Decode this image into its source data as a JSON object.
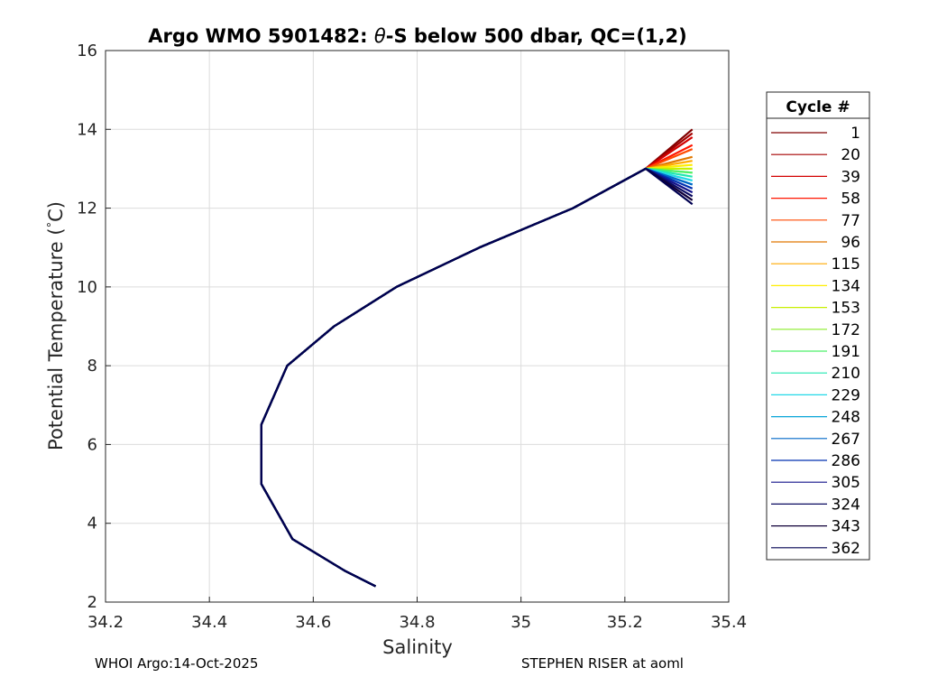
{
  "chart_data": {
    "type": "line",
    "title_prefix": "Argo WMO 5901482: ",
    "title_theta": "θ",
    "title_suffix": "-S below 500 dbar,  QC=(1,2)",
    "xlabel": "Salinity",
    "ylabel_main": "Potential Temperature (",
    "ylabel_deg": "°",
    "ylabel_end": "C)",
    "xlim": [
      34.2,
      35.4
    ],
    "ylim": [
      2,
      16
    ],
    "xticks": [
      "34.2",
      "34.4",
      "34.6",
      "34.8",
      "35",
      "35.2",
      "35.4"
    ],
    "yticks": [
      "2",
      "4",
      "6",
      "8",
      "10",
      "12",
      "14",
      "16"
    ],
    "grid": true,
    "legend": {
      "title": "Cycle #",
      "placement": "right-outside",
      "entries": [
        {
          "label": "1",
          "color": "#800000"
        },
        {
          "label": "20",
          "color": "#a50000"
        },
        {
          "label": "39",
          "color": "#d20000"
        },
        {
          "label": "58",
          "color": "#ff1500"
        },
        {
          "label": "77",
          "color": "#ff4a00"
        },
        {
          "label": "96",
          "color": "#e07800"
        },
        {
          "label": "115",
          "color": "#ffaa00"
        },
        {
          "label": "134",
          "color": "#ffee00"
        },
        {
          "label": "153",
          "color": "#c8f000"
        },
        {
          "label": "172",
          "color": "#8aee2a"
        },
        {
          "label": "191",
          "color": "#4ef06a"
        },
        {
          "label": "210",
          "color": "#20e8b0"
        },
        {
          "label": "229",
          "color": "#22d8e8"
        },
        {
          "label": "248",
          "color": "#0aa6d8"
        },
        {
          "label": "267",
          "color": "#0068c8"
        },
        {
          "label": "286",
          "color": "#0030b0"
        },
        {
          "label": "305",
          "color": "#12128a"
        },
        {
          "label": "324",
          "color": "#0a0a60"
        },
        {
          "label": "343",
          "color": "#100038"
        },
        {
          "label": "362",
          "color": "#000050"
        }
      ]
    },
    "series": [
      {
        "color": "#800000",
        "s": [
          35.33,
          35.24,
          35.1,
          34.92,
          34.76,
          34.64,
          34.55,
          34.5,
          34.5,
          34.56,
          34.66,
          34.72
        ],
        "t": [
          14.0,
          13.0,
          12.0,
          11.0,
          10.0,
          9.0,
          8.0,
          6.5,
          5.0,
          3.6,
          2.8,
          2.4
        ]
      },
      {
        "color": "#a50000",
        "s": [
          35.33,
          35.24,
          35.1,
          34.92,
          34.76,
          34.64,
          34.55,
          34.5,
          34.5,
          34.56,
          34.66,
          34.72
        ],
        "t": [
          13.9,
          13.0,
          12.0,
          11.0,
          10.0,
          9.0,
          8.0,
          6.5,
          5.0,
          3.6,
          2.8,
          2.4
        ]
      },
      {
        "color": "#d20000",
        "s": [
          35.33,
          35.24,
          35.1,
          34.92,
          34.76,
          34.64,
          34.55,
          34.5,
          34.5,
          34.56,
          34.66,
          34.72
        ],
        "t": [
          13.8,
          13.0,
          12.0,
          11.0,
          10.0,
          9.0,
          8.0,
          6.5,
          5.0,
          3.6,
          2.8,
          2.4
        ]
      },
      {
        "color": "#ff1500",
        "s": [
          35.33,
          35.24,
          35.1,
          34.92,
          34.76,
          34.64,
          34.55,
          34.5,
          34.5,
          34.56,
          34.66,
          34.72
        ],
        "t": [
          13.6,
          13.0,
          12.0,
          11.0,
          10.0,
          9.0,
          8.0,
          6.5,
          5.0,
          3.6,
          2.8,
          2.4
        ]
      },
      {
        "color": "#ff4a00",
        "s": [
          35.33,
          35.24,
          35.1,
          34.92,
          34.76,
          34.64,
          34.55,
          34.5,
          34.5,
          34.56,
          34.66,
          34.72
        ],
        "t": [
          13.5,
          13.0,
          12.0,
          11.0,
          10.0,
          9.0,
          8.0,
          6.5,
          5.0,
          3.6,
          2.8,
          2.4
        ]
      },
      {
        "color": "#e07800",
        "s": [
          35.33,
          35.24,
          35.1,
          34.92,
          34.76,
          34.64,
          34.55,
          34.5,
          34.5,
          34.56,
          34.66,
          34.72
        ],
        "t": [
          13.3,
          13.0,
          12.0,
          11.0,
          10.0,
          9.0,
          8.0,
          6.5,
          5.0,
          3.6,
          2.8,
          2.4
        ]
      },
      {
        "color": "#ffaa00",
        "s": [
          35.33,
          35.24,
          35.1,
          34.92,
          34.76,
          34.64,
          34.55,
          34.5,
          34.5,
          34.56,
          34.66,
          34.72
        ],
        "t": [
          13.2,
          13.0,
          12.0,
          11.0,
          10.0,
          9.0,
          8.0,
          6.5,
          5.0,
          3.6,
          2.8,
          2.4
        ]
      },
      {
        "color": "#ffee00",
        "s": [
          35.33,
          35.24,
          35.1,
          34.92,
          34.76,
          34.64,
          34.55,
          34.5,
          34.5,
          34.56,
          34.66,
          34.72
        ],
        "t": [
          13.1,
          13.0,
          12.0,
          11.0,
          10.0,
          9.0,
          8.0,
          6.5,
          5.0,
          3.6,
          2.8,
          2.4
        ]
      },
      {
        "color": "#c8f000",
        "s": [
          35.33,
          35.24,
          35.1,
          34.92,
          34.76,
          34.64,
          34.55,
          34.5,
          34.5,
          34.56,
          34.66,
          34.72
        ],
        "t": [
          13.0,
          13.0,
          12.0,
          11.0,
          10.0,
          9.0,
          8.0,
          6.5,
          5.0,
          3.6,
          2.8,
          2.4
        ]
      },
      {
        "color": "#8aee2a",
        "s": [
          35.33,
          35.24,
          35.1,
          34.92,
          34.76,
          34.64,
          34.55,
          34.5,
          34.5,
          34.56,
          34.66,
          34.72
        ],
        "t": [
          12.9,
          13.0,
          12.0,
          11.0,
          10.0,
          9.0,
          8.0,
          6.5,
          5.0,
          3.6,
          2.8,
          2.4
        ]
      },
      {
        "color": "#4ef06a",
        "s": [
          35.33,
          35.24,
          35.1,
          34.92,
          34.76,
          34.64,
          34.55,
          34.5,
          34.5,
          34.56,
          34.66,
          34.72
        ],
        "t": [
          12.9,
          13.0,
          12.0,
          11.0,
          10.0,
          9.0,
          8.0,
          6.5,
          5.0,
          3.6,
          2.8,
          2.4
        ]
      },
      {
        "color": "#20e8b0",
        "s": [
          35.33,
          35.24,
          35.1,
          34.92,
          34.76,
          34.64,
          34.55,
          34.5,
          34.5,
          34.56,
          34.66,
          34.72
        ],
        "t": [
          12.8,
          13.0,
          12.0,
          11.0,
          10.0,
          9.0,
          8.0,
          6.5,
          5.0,
          3.6,
          2.8,
          2.4
        ]
      },
      {
        "color": "#22d8e8",
        "s": [
          35.33,
          35.24,
          35.1,
          34.92,
          34.76,
          34.64,
          34.55,
          34.5,
          34.5,
          34.56,
          34.66,
          34.72
        ],
        "t": [
          12.7,
          13.0,
          12.0,
          11.0,
          10.0,
          9.0,
          8.0,
          6.5,
          5.0,
          3.6,
          2.8,
          2.4
        ]
      },
      {
        "color": "#0aa6d8",
        "s": [
          35.33,
          35.24,
          35.1,
          34.92,
          34.76,
          34.64,
          34.55,
          34.5,
          34.5,
          34.56,
          34.66,
          34.72
        ],
        "t": [
          12.6,
          13.0,
          12.0,
          11.0,
          10.0,
          9.0,
          8.0,
          6.5,
          5.0,
          3.6,
          2.8,
          2.4
        ]
      },
      {
        "color": "#0068c8",
        "s": [
          35.33,
          35.24,
          35.1,
          34.92,
          34.76,
          34.64,
          34.55,
          34.5,
          34.5,
          34.56,
          34.66,
          34.72
        ],
        "t": [
          12.6,
          13.0,
          12.0,
          11.0,
          10.0,
          9.0,
          8.0,
          6.5,
          5.0,
          3.6,
          2.8,
          2.4
        ]
      },
      {
        "color": "#0030b0",
        "s": [
          35.33,
          35.24,
          35.1,
          34.92,
          34.76,
          34.64,
          34.55,
          34.5,
          34.5,
          34.56,
          34.66,
          34.72
        ],
        "t": [
          12.5,
          13.0,
          12.0,
          11.0,
          10.0,
          9.0,
          8.0,
          6.5,
          5.0,
          3.6,
          2.8,
          2.4
        ]
      },
      {
        "color": "#12128a",
        "s": [
          35.33,
          35.24,
          35.1,
          34.92,
          34.76,
          34.64,
          34.55,
          34.5,
          34.5,
          34.56,
          34.66,
          34.72
        ],
        "t": [
          12.4,
          13.0,
          12.0,
          11.0,
          10.0,
          9.0,
          8.0,
          6.5,
          5.0,
          3.6,
          2.8,
          2.4
        ]
      },
      {
        "color": "#0a0a60",
        "s": [
          35.33,
          35.24,
          35.1,
          34.92,
          34.76,
          34.64,
          34.55,
          34.5,
          34.5,
          34.56,
          34.66,
          34.72
        ],
        "t": [
          12.3,
          13.0,
          12.0,
          11.0,
          10.0,
          9.0,
          8.0,
          6.5,
          5.0,
          3.6,
          2.8,
          2.4
        ]
      },
      {
        "color": "#100038",
        "s": [
          35.33,
          35.24,
          35.1,
          34.92,
          34.76,
          34.64,
          34.55,
          34.5,
          34.5,
          34.56,
          34.66,
          34.72
        ],
        "t": [
          12.2,
          13.0,
          12.0,
          11.0,
          10.0,
          9.0,
          8.0,
          6.5,
          5.0,
          3.6,
          2.8,
          2.4
        ]
      },
      {
        "color": "#000050",
        "s": [
          35.33,
          35.24,
          35.1,
          34.92,
          34.76,
          34.64,
          34.55,
          34.5,
          34.5,
          34.56,
          34.66,
          34.72
        ],
        "t": [
          12.1,
          13.0,
          12.0,
          11.0,
          10.0,
          9.0,
          8.0,
          6.5,
          5.0,
          3.6,
          2.8,
          2.4
        ]
      }
    ]
  },
  "footer": {
    "left": "WHOI Argo:14-Oct-2025",
    "right": "STEPHEN RISER at aoml"
  }
}
